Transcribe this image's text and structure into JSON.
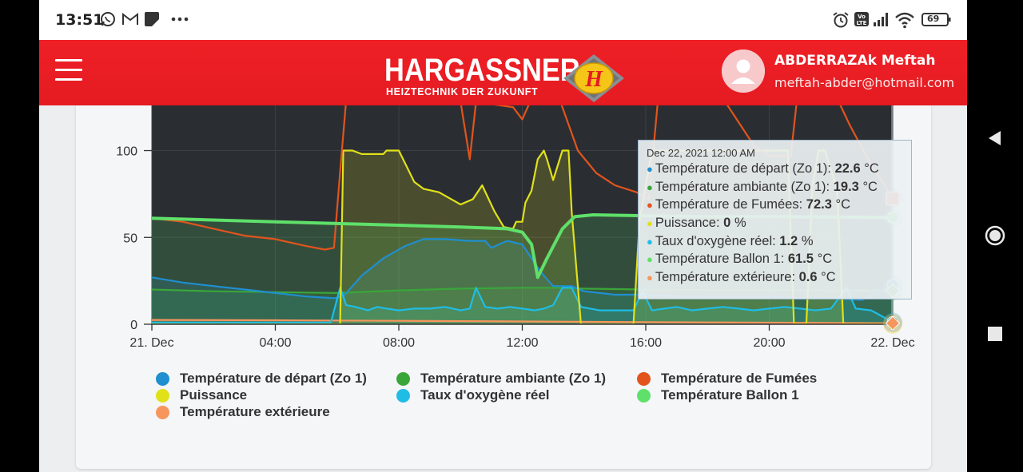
{
  "status_bar": {
    "time": "13:51",
    "left_icons": [
      "whatsapp-icon",
      "gmail-icon",
      "app-icon",
      "more-icon"
    ],
    "right_icons": [
      "alarm-icon",
      "volte-icon",
      "signal-icon",
      "wifi-icon"
    ],
    "battery": "69"
  },
  "header": {
    "brand_name": "HARGASSNER",
    "brand_tagline": "HEIZTECHNIK DER ZUKUNFT",
    "brand_logo_letter": "H",
    "user_name": "ABDERRAZAk Meftah",
    "user_email": "meftah-abder@hotmail.com",
    "colors": {
      "header": "#e51b22",
      "logo_yellow": "#f5c518"
    }
  },
  "chart_data": {
    "type": "line",
    "background": "#2a2e33",
    "x_ticks": [
      "21. Dec",
      "04:00",
      "08:00",
      "12:00",
      "16:00",
      "20:00",
      "22. Dec"
    ],
    "x_tick_hours": [
      0,
      4,
      8,
      12,
      16,
      20,
      24
    ],
    "y_ticks": [
      0,
      50,
      100
    ],
    "ylim": [
      0,
      126
    ],
    "xlim": [
      0,
      24
    ],
    "series": [
      {
        "name": "Température de départ (Zo 1)",
        "color": "#1f8fd0",
        "unit": "°C",
        "fill": true,
        "points": [
          [
            0,
            27
          ],
          [
            1,
            24
          ],
          [
            2,
            22
          ],
          [
            3,
            20
          ],
          [
            4,
            18
          ],
          [
            5,
            16
          ],
          [
            5.9,
            15
          ],
          [
            6.2,
            16
          ],
          [
            6.8,
            28
          ],
          [
            7.5,
            38
          ],
          [
            8.2,
            45
          ],
          [
            8.8,
            49
          ],
          [
            9.5,
            49
          ],
          [
            10.3,
            48
          ],
          [
            10.8,
            48
          ],
          [
            11,
            44
          ],
          [
            11.5,
            48
          ],
          [
            12,
            46
          ],
          [
            12.3,
            38
          ],
          [
            12.6,
            30
          ],
          [
            13,
            22
          ],
          [
            13.6,
            22
          ],
          [
            14,
            19
          ],
          [
            15,
            17
          ],
          [
            16,
            17
          ],
          [
            17,
            16
          ],
          [
            18,
            16
          ],
          [
            19,
            16
          ],
          [
            20,
            16
          ],
          [
            21,
            15
          ],
          [
            22,
            15
          ],
          [
            23,
            14
          ],
          [
            24,
            22.6
          ]
        ]
      },
      {
        "name": "Température ambiante (Zo 1)",
        "color": "#3aa63a",
        "unit": "°C",
        "fill": true,
        "points": [
          [
            0,
            20
          ],
          [
            2,
            19
          ],
          [
            4,
            18.5
          ],
          [
            6,
            18
          ],
          [
            8,
            19.5
          ],
          [
            10,
            20.5
          ],
          [
            12,
            21
          ],
          [
            13,
            21
          ],
          [
            14,
            20.5
          ],
          [
            16,
            20
          ],
          [
            18,
            19.8
          ],
          [
            20,
            19.6
          ],
          [
            22,
            19.4
          ],
          [
            24,
            19.3
          ]
        ]
      },
      {
        "name": "Température de Fumées",
        "color": "#e2541c",
        "unit": "°C",
        "fill": false,
        "points": [
          [
            0,
            61
          ],
          [
            1,
            59
          ],
          [
            2,
            55
          ],
          [
            3,
            51
          ],
          [
            4,
            49
          ],
          [
            5,
            45
          ],
          [
            5.6,
            43
          ],
          [
            5.9,
            44
          ],
          [
            6.1,
            88
          ],
          [
            6.3,
            130
          ],
          [
            9,
            130
          ],
          [
            10,
            128
          ],
          [
            10.3,
            95
          ],
          [
            10.5,
            128
          ],
          [
            11.7,
            125
          ],
          [
            12,
            118
          ],
          [
            12.3,
            130
          ],
          [
            13.2,
            130
          ],
          [
            13.8,
            100
          ],
          [
            14.4,
            87
          ],
          [
            15,
            80
          ],
          [
            15.7,
            76
          ],
          [
            16.1,
            72
          ],
          [
            16.4,
            130
          ],
          [
            18.5,
            130
          ],
          [
            19.5,
            103
          ],
          [
            20,
            97
          ],
          [
            20.7,
            97
          ],
          [
            20.9,
            130
          ],
          [
            22.2,
            130
          ],
          [
            22.6,
            115
          ],
          [
            23.2,
            95
          ],
          [
            24,
            72.3
          ]
        ]
      },
      {
        "name": "Puissance",
        "color": "#e1e11a",
        "unit": "%",
        "fill": true,
        "points": [
          [
            0,
            0
          ],
          [
            5.8,
            0
          ],
          [
            6.1,
            0
          ],
          [
            6.2,
            100
          ],
          [
            6.5,
            100
          ],
          [
            6.8,
            98
          ],
          [
            7.5,
            98
          ],
          [
            7.6,
            100
          ],
          [
            8,
            100
          ],
          [
            8.5,
            82
          ],
          [
            8.8,
            78
          ],
          [
            9.3,
            76
          ],
          [
            10,
            69
          ],
          [
            10.4,
            72
          ],
          [
            10.7,
            80
          ],
          [
            11.1,
            65
          ],
          [
            11.4,
            56
          ],
          [
            11.7,
            55
          ],
          [
            11.8,
            59
          ],
          [
            12,
            59
          ],
          [
            12.1,
            70
          ],
          [
            12.3,
            77
          ],
          [
            12.5,
            95
          ],
          [
            12.7,
            100
          ],
          [
            12.8,
            95
          ],
          [
            13,
            83
          ],
          [
            13.3,
            100
          ],
          [
            13.5,
            100
          ],
          [
            13.6,
            65
          ],
          [
            13.9,
            0
          ],
          [
            15.6,
            0
          ],
          [
            15.8,
            60
          ],
          [
            16.2,
            100
          ],
          [
            17.5,
            100
          ],
          [
            19.5,
            100
          ],
          [
            20.4,
            100
          ],
          [
            20.6,
            100
          ],
          [
            20.8,
            0
          ],
          [
            21.2,
            0
          ],
          [
            21.4,
            80
          ],
          [
            21.6,
            100
          ],
          [
            21.8,
            100
          ],
          [
            22.2,
            78
          ],
          [
            22.4,
            0
          ],
          [
            24,
            0
          ]
        ]
      },
      {
        "name": "Taux d'oxygène réel",
        "color": "#1fbde6",
        "unit": "%",
        "fill": true,
        "points": [
          [
            0,
            1
          ],
          [
            5.8,
            1
          ],
          [
            6.1,
            21
          ],
          [
            6.3,
            11
          ],
          [
            6.6,
            10
          ],
          [
            7,
            8
          ],
          [
            7.3,
            10
          ],
          [
            7.6,
            9
          ],
          [
            8,
            8
          ],
          [
            8.5,
            9
          ],
          [
            9,
            9
          ],
          [
            9.5,
            10
          ],
          [
            10,
            8
          ],
          [
            10.3,
            9
          ],
          [
            10.5,
            21
          ],
          [
            10.8,
            10
          ],
          [
            11.2,
            9
          ],
          [
            11.6,
            10
          ],
          [
            12,
            9
          ],
          [
            12.4,
            8
          ],
          [
            12.7,
            9
          ],
          [
            13,
            11
          ],
          [
            13.3,
            21
          ],
          [
            13.6,
            21
          ],
          [
            13.9,
            10
          ],
          [
            14.5,
            8
          ],
          [
            15,
            8
          ],
          [
            15.6,
            8
          ],
          [
            15.9,
            19
          ],
          [
            16.2,
            8
          ],
          [
            16.6,
            9
          ],
          [
            17,
            10
          ],
          [
            17.5,
            8
          ],
          [
            18,
            9
          ],
          [
            18.5,
            10
          ],
          [
            19,
            9
          ],
          [
            19.5,
            8
          ],
          [
            20,
            9
          ],
          [
            20.5,
            10
          ],
          [
            21,
            9
          ],
          [
            21.5,
            8
          ],
          [
            22,
            9
          ],
          [
            22.5,
            21
          ],
          [
            22.8,
            9
          ],
          [
            23.3,
            8
          ],
          [
            24,
            1.2
          ]
        ]
      },
      {
        "name": "Température Ballon 1",
        "color": "#5fe06a",
        "unit": "°C",
        "fill": true,
        "points": [
          [
            0,
            61
          ],
          [
            2,
            60
          ],
          [
            4,
            59
          ],
          [
            6,
            58
          ],
          [
            8,
            57
          ],
          [
            10,
            56
          ],
          [
            11.5,
            55
          ],
          [
            12,
            53
          ],
          [
            12.3,
            46
          ],
          [
            12.5,
            27
          ],
          [
            12.8,
            38
          ],
          [
            13.3,
            55
          ],
          [
            13.7,
            62
          ],
          [
            14.3,
            63
          ],
          [
            16,
            62.5
          ],
          [
            18,
            62
          ],
          [
            20,
            62
          ],
          [
            22,
            61.8
          ],
          [
            24,
            61.5
          ]
        ]
      },
      {
        "name": "Température extérieure",
        "color": "#f7965c",
        "unit": "°C",
        "fill": true,
        "points": [
          [
            0,
            2.5
          ],
          [
            4,
            2.3
          ],
          [
            8,
            2
          ],
          [
            12,
            1.6
          ],
          [
            16,
            1.2
          ],
          [
            20,
            0.9
          ],
          [
            24,
            0.6
          ]
        ]
      }
    ],
    "tooltip": {
      "date": "Dec 22, 2021 12:00 AM",
      "values": [
        "22.6",
        "19.3",
        "72.3",
        "0",
        "1.2",
        "61.5",
        "0.6"
      ]
    }
  },
  "legend": [
    {
      "label": "Température de départ (Zo 1)",
      "color": "#1f8fd0"
    },
    {
      "label": "Température ambiante (Zo 1)",
      "color": "#3aa63a"
    },
    {
      "label": "Température de Fumées",
      "color": "#e2541c"
    },
    {
      "label": "Puissance",
      "color": "#e1e11a"
    },
    {
      "label": "Taux d'oxygène réel",
      "color": "#1fbde6"
    },
    {
      "label": "Température Ballon 1",
      "color": "#5fe06a"
    },
    {
      "label": "Température extérieure",
      "color": "#f7965c"
    }
  ],
  "navigation": [
    "back-icon",
    "home-icon",
    "recents-icon"
  ]
}
